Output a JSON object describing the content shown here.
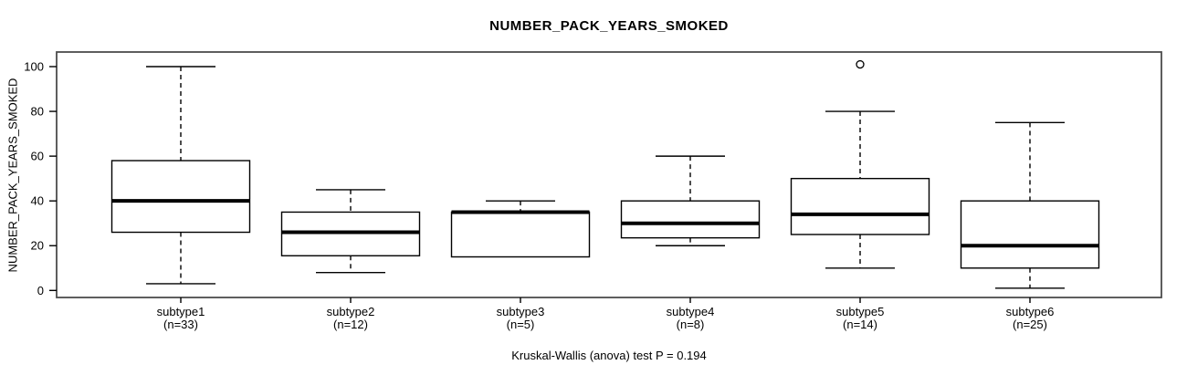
{
  "chart_data": {
    "type": "boxplot",
    "title": "NUMBER_PACK_YEARS_SMOKED",
    "ylabel": "NUMBER_PACK_YEARS_SMOKED",
    "xlabel": "",
    "footer": "Kruskal-Wallis (anova) test P = 0.194",
    "yticks": [
      0,
      20,
      40,
      60,
      80,
      100
    ],
    "ylim": [
      -3,
      107
    ],
    "grid": false,
    "legend": "none",
    "groups": [
      {
        "label": "subtype1",
        "n_label": "(n=33)",
        "n": 33,
        "whisker_low": 3,
        "q1": 26,
        "median": 40,
        "q3": 58,
        "whisker_high": 100,
        "outliers": []
      },
      {
        "label": "subtype2",
        "n_label": "(n=12)",
        "n": 12,
        "whisker_low": 8,
        "q1": 15.5,
        "median": 26,
        "q3": 35,
        "whisker_high": 45,
        "outliers": []
      },
      {
        "label": "subtype3",
        "n_label": "(n=5)",
        "n": 5,
        "whisker_low": 15,
        "q1": 15,
        "median": 35,
        "q3": 35,
        "whisker_high": 40,
        "outliers": []
      },
      {
        "label": "subtype4",
        "n_label": "(n=8)",
        "n": 8,
        "whisker_low": 20,
        "q1": 23.5,
        "median": 30,
        "q3": 40,
        "whisker_high": 60,
        "outliers": []
      },
      {
        "label": "subtype5",
        "n_label": "(n=14)",
        "n": 14,
        "whisker_low": 10,
        "q1": 25,
        "median": 34,
        "q3": 50,
        "whisker_high": 80,
        "outliers": [
          101
        ]
      },
      {
        "label": "subtype6",
        "n_label": "(n=25)",
        "n": 25,
        "whisker_low": 1,
        "q1": 10,
        "median": 20,
        "q3": 40,
        "whisker_high": 75,
        "outliers": []
      }
    ],
    "colors": {
      "background": "#ffffff",
      "frame": "#4d4d4d",
      "box_stroke": "#000000",
      "median": "#000000",
      "whisker": "#000000",
      "text": "#000000"
    }
  }
}
